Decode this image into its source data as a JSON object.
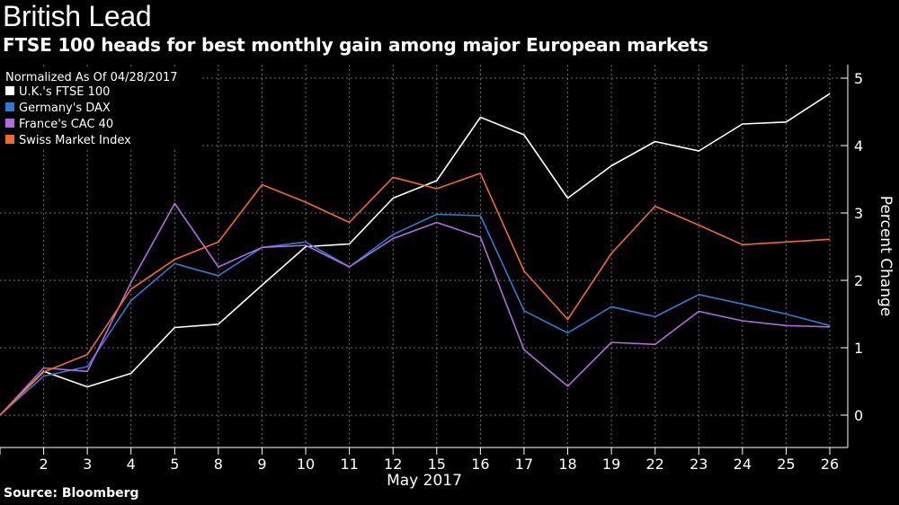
{
  "header": {
    "title": "British Lead",
    "subtitle": "FTSE 100 heads for best monthly gain among major European markets"
  },
  "footer": {
    "source": "Source: Bloomberg"
  },
  "colors": {
    "background": "#000000",
    "grid": "#6e6e6e",
    "text": "#ffffff"
  },
  "chart_data": {
    "type": "line",
    "legend_title": "Normalized As Of 04/28/2017",
    "legend_position": "top-left",
    "xlabel": "May 2017",
    "ylabel": "Percent Change",
    "y_axis_side": "right",
    "ylim": [
      -0.5,
      5.2
    ],
    "yticks": [
      0,
      1,
      2,
      3,
      4,
      5
    ],
    "grid": true,
    "x_tick_labels": [
      "",
      "2",
      "3",
      "4",
      "5",
      "8",
      "9",
      "10",
      "11",
      "12",
      "15",
      "16",
      "17",
      "18",
      "19",
      "22",
      "23",
      "24",
      "25",
      "26"
    ],
    "series": [
      {
        "name": "U.K.'s FTSE 100",
        "color": "#ffffff",
        "values": [
          0,
          0.65,
          0.42,
          0.62,
          1.3,
          1.35,
          1.93,
          2.5,
          2.54,
          3.22,
          3.48,
          4.42,
          4.16,
          3.22,
          3.7,
          4.06,
          3.92,
          4.32,
          4.35,
          4.77
        ]
      },
      {
        "name": "Germany's DAX",
        "color": "#2b7cd3",
        "values": [
          0,
          0.58,
          0.72,
          1.7,
          2.25,
          2.07,
          2.49,
          2.57,
          2.2,
          2.68,
          2.98,
          2.96,
          1.55,
          1.22,
          1.61,
          1.46,
          1.79,
          1.65,
          1.5,
          1.33
        ]
      },
      {
        "name": "France's CAC 40",
        "color": "#b36ae2",
        "values": [
          0,
          0.7,
          0.65,
          1.97,
          3.14,
          2.2,
          2.49,
          2.52,
          2.2,
          2.62,
          2.86,
          2.64,
          0.97,
          0.43,
          1.08,
          1.05,
          1.54,
          1.4,
          1.33,
          1.31
        ]
      },
      {
        "name": "Swiss Market Index",
        "color": "#f26b21",
        "values": [
          0,
          0.64,
          0.9,
          1.87,
          2.31,
          2.57,
          3.42,
          3.16,
          2.86,
          3.53,
          3.36,
          3.59,
          2.14,
          1.42,
          2.4,
          3.1,
          2.82,
          2.53,
          2.57,
          2.61
        ]
      }
    ]
  }
}
